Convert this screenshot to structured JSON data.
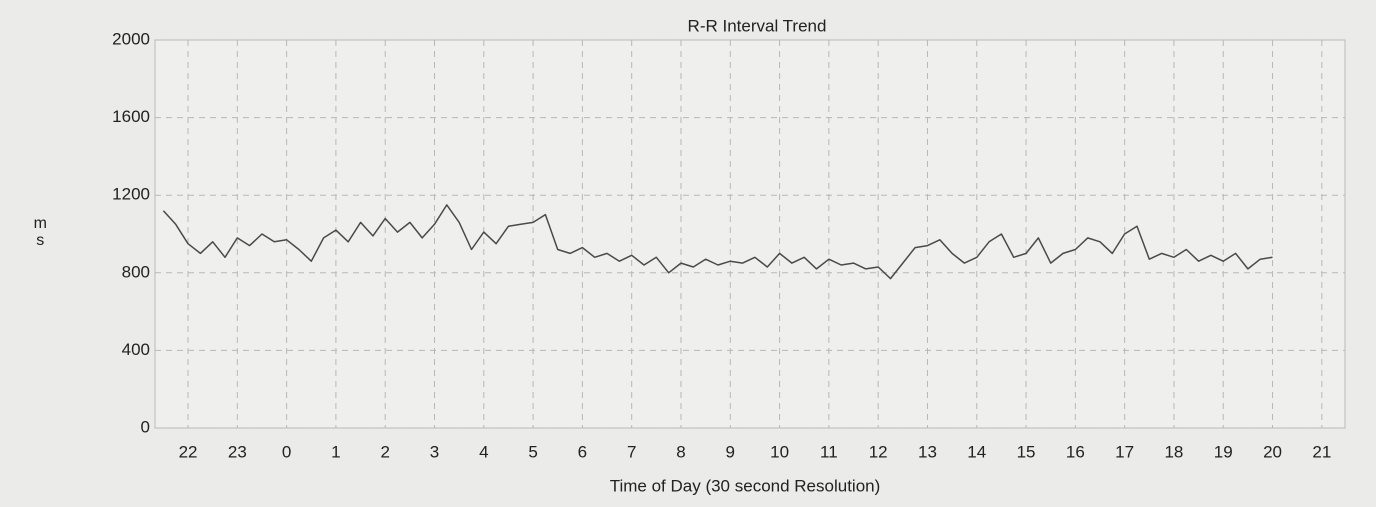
{
  "chart_data": {
    "type": "line",
    "title": "R-R Interval Trend",
    "x_label": "Time of Day (30 second Resolution)",
    "y_label": "ms",
    "grid": true,
    "xlim": [
      21.33,
      45.47
    ],
    "ylim": [
      0,
      2000
    ],
    "yticks": [
      0,
      400,
      800,
      1200,
      1600,
      2000
    ],
    "xticks": [
      22,
      23,
      {
        "value": 24,
        "label": "0"
      },
      {
        "value": 25,
        "label": "1"
      },
      {
        "value": 26,
        "label": "2"
      },
      {
        "value": 27,
        "label": "3"
      },
      {
        "value": 28,
        "label": "4"
      },
      {
        "value": 29,
        "label": "5"
      },
      {
        "value": 30,
        "label": "6"
      },
      {
        "value": 31,
        "label": "7"
      },
      {
        "value": 32,
        "label": "8"
      },
      {
        "value": 33,
        "label": "9"
      },
      {
        "value": 34,
        "label": "10"
      },
      {
        "value": 35,
        "label": "11"
      },
      {
        "value": 36,
        "label": "12"
      },
      {
        "value": 37,
        "label": "13"
      },
      {
        "value": 38,
        "label": "14"
      },
      {
        "value": 39,
        "label": "15"
      },
      {
        "value": 40,
        "label": "16"
      },
      {
        "value": 41,
        "label": "17"
      },
      {
        "value": 42,
        "label": "18"
      },
      {
        "value": 43,
        "label": "19"
      },
      {
        "value": 44,
        "label": "20"
      },
      {
        "value": 45,
        "label": "21"
      }
    ],
    "x": [
      21.5,
      21.75,
      22,
      22.25,
      22.5,
      22.75,
      23,
      23.25,
      23.5,
      23.75,
      24,
      24.25,
      24.5,
      24.75,
      25,
      25.25,
      25.5,
      25.75,
      26,
      26.25,
      26.5,
      26.75,
      27,
      27.25,
      27.5,
      27.75,
      28,
      28.25,
      28.5,
      28.75,
      29,
      29.25,
      29.5,
      29.75,
      30,
      30.25,
      30.5,
      30.75,
      31,
      31.25,
      31.5,
      31.75,
      32,
      32.25,
      32.5,
      32.75,
      33,
      33.25,
      33.5,
      33.75,
      34,
      34.25,
      34.5,
      34.75,
      35,
      35.25,
      35.5,
      35.75,
      36,
      36.25,
      36.5,
      36.75,
      37,
      37.25,
      37.5,
      37.75,
      38,
      38.25,
      38.5,
      38.75,
      39,
      39.25,
      39.5,
      39.75,
      40,
      40.25,
      40.5,
      40.75,
      41,
      41.25,
      41.5,
      41.75,
      42,
      42.25,
      42.5,
      42.75,
      43,
      43.25,
      43.5,
      43.75,
      44
    ],
    "series": [
      {
        "color": "#4a4a4a",
        "values": [
          1120,
          1050,
          950,
          900,
          960,
          880,
          980,
          940,
          1000,
          960,
          970,
          920,
          860,
          980,
          1020,
          960,
          1060,
          990,
          1080,
          1010,
          1060,
          980,
          1050,
          1150,
          1060,
          920,
          1010,
          950,
          1040,
          1050,
          1060,
          1100,
          920,
          900,
          930,
          880,
          900,
          860,
          890,
          840,
          880,
          800,
          850,
          830,
          870,
          840,
          860,
          850,
          880,
          830,
          900,
          850,
          880,
          820,
          870,
          840,
          850,
          820,
          830,
          770,
          850,
          930,
          940,
          970,
          900,
          850,
          880,
          960,
          1000,
          880,
          900,
          980,
          850,
          900,
          920,
          980,
          960,
          900,
          1000,
          1040,
          870,
          900,
          880,
          920,
          860,
          890,
          860,
          900,
          820,
          870,
          880
        ]
      }
    ]
  }
}
